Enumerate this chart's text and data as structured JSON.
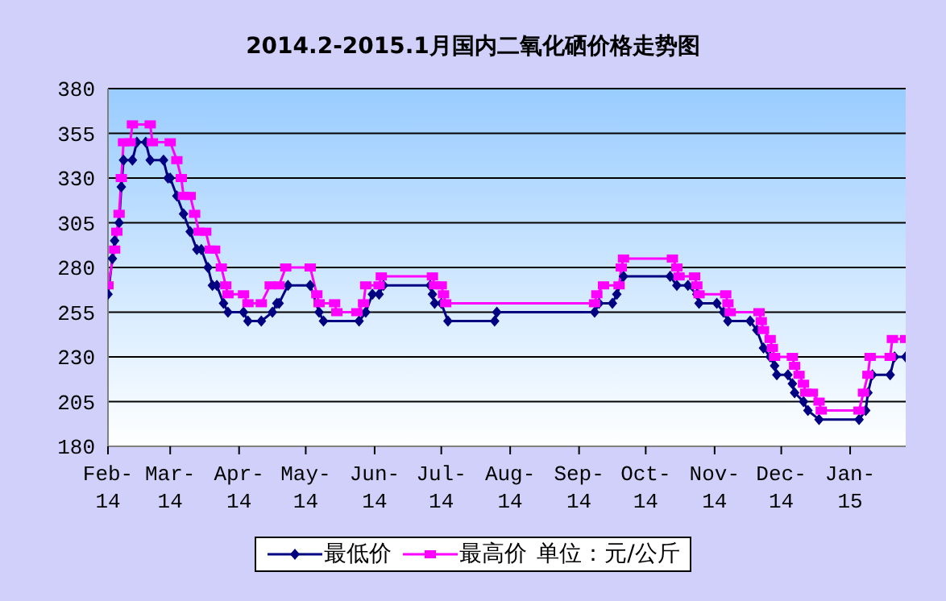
{
  "chart_data": {
    "type": "line",
    "title": "2014.2-2015.1月国内二氧化硒价格走势图",
    "ylim": [
      180,
      380
    ],
    "yticks": [
      180,
      205,
      230,
      255,
      280,
      305,
      330,
      355,
      380
    ],
    "xlim": [
      "2014-02-01",
      "2015-01-26"
    ],
    "xticks": [
      {
        "value": "2014-02-01",
        "label": "Feb-14"
      },
      {
        "value": "2014-03-01",
        "label": "Mar-14"
      },
      {
        "value": "2014-04-01",
        "label": "Apr-14"
      },
      {
        "value": "2014-05-01",
        "label": "May-14"
      },
      {
        "value": "2014-06-01",
        "label": "Jun-14"
      },
      {
        "value": "2014-07-01",
        "label": "Jul-14"
      },
      {
        "value": "2014-08-01",
        "label": "Aug-14"
      },
      {
        "value": "2014-09-01",
        "label": "Sep-14"
      },
      {
        "value": "2014-10-01",
        "label": "Oct-14"
      },
      {
        "value": "2014-11-01",
        "label": "Nov-14"
      },
      {
        "value": "2014-12-01",
        "label": "Dec-14"
      },
      {
        "value": "2015-01-01",
        "label": "Jan-15"
      }
    ],
    "grid": "y",
    "legend": "bottom",
    "annotations": [
      "单位：元/公斤"
    ],
    "series": [
      {
        "name": "最低价",
        "color": "#000080",
        "marker": "diamond",
        "x": [
          "2014-02-01",
          "2014-02-03",
          "2014-02-04",
          "2014-02-06",
          "2014-02-07",
          "2014-02-08",
          "2014-02-12",
          "2014-02-14",
          "2014-02-18",
          "2014-02-20",
          "2014-02-26",
          "2014-02-28",
          "2014-03-01",
          "2014-03-04",
          "2014-03-07",
          "2014-03-10",
          "2014-03-13",
          "2014-03-15",
          "2014-03-18",
          "2014-03-20",
          "2014-03-22",
          "2014-03-25",
          "2014-03-27",
          "2014-04-03",
          "2014-04-05",
          "2014-04-11",
          "2014-04-16",
          "2014-04-18",
          "2014-04-19",
          "2014-04-23",
          "2014-05-03",
          "2014-05-07",
          "2014-05-09",
          "2014-05-25",
          "2014-05-28",
          "2014-05-31",
          "2014-06-03",
          "2014-06-05",
          "2014-06-26",
          "2014-06-27",
          "2014-06-28",
          "2014-07-01",
          "2014-07-04",
          "2014-07-25",
          "2014-07-26",
          "2014-09-08",
          "2014-09-10",
          "2014-09-16",
          "2014-09-18",
          "2014-09-21",
          "2014-10-12",
          "2014-10-15",
          "2014-10-20",
          "2014-10-24",
          "2014-10-25",
          "2014-11-02",
          "2014-11-05",
          "2014-11-07",
          "2014-11-17",
          "2014-11-20",
          "2014-11-23",
          "2014-11-26",
          "2014-11-28",
          "2014-11-29",
          "2014-12-04",
          "2014-12-06",
          "2014-12-07",
          "2014-12-11",
          "2014-12-13",
          "2014-12-18",
          "2015-01-05",
          "2015-01-08",
          "2015-01-09",
          "2015-01-11",
          "2015-01-19",
          "2015-01-21",
          "2015-01-26"
        ],
        "values": [
          265,
          285,
          295,
          305,
          325,
          340,
          340,
          350,
          350,
          340,
          340,
          330,
          330,
          320,
          310,
          300,
          290,
          290,
          280,
          270,
          270,
          260,
          255,
          255,
          250,
          250,
          255,
          260,
          260,
          270,
          270,
          255,
          250,
          250,
          255,
          265,
          265,
          270,
          270,
          265,
          260,
          260,
          250,
          250,
          255,
          255,
          260,
          260,
          265,
          275,
          275,
          270,
          270,
          265,
          260,
          260,
          255,
          250,
          250,
          245,
          235,
          230,
          225,
          220,
          220,
          215,
          210,
          205,
          200,
          195,
          195,
          200,
          210,
          220,
          220,
          230,
          230
        ]
      },
      {
        "name": "最高价",
        "color": "#ff00ff",
        "marker": "square",
        "x": [
          "2014-02-01",
          "2014-02-04",
          "2014-02-05",
          "2014-02-06",
          "2014-02-07",
          "2014-02-08",
          "2014-02-11",
          "2014-02-12",
          "2014-02-20",
          "2014-02-21",
          "2014-03-01",
          "2014-03-04",
          "2014-03-06",
          "2014-03-07",
          "2014-03-10",
          "2014-03-12",
          "2014-03-14",
          "2014-03-17",
          "2014-03-19",
          "2014-03-21",
          "2014-03-24",
          "2014-03-26",
          "2014-03-27",
          "2014-04-03",
          "2014-04-05",
          "2014-04-11",
          "2014-04-15",
          "2014-04-19",
          "2014-04-22",
          "2014-05-03",
          "2014-05-06",
          "2014-05-07",
          "2014-05-14",
          "2014-05-15",
          "2014-05-24",
          "2014-05-27",
          "2014-05-28",
          "2014-06-03",
          "2014-06-04",
          "2014-06-27",
          "2014-06-28",
          "2014-07-01",
          "2014-07-02",
          "2014-07-03",
          "2014-09-08",
          "2014-09-09",
          "2014-09-12",
          "2014-09-19",
          "2014-09-20",
          "2014-09-21",
          "2014-10-13",
          "2014-10-15",
          "2014-10-16",
          "2014-10-23",
          "2014-10-24",
          "2014-10-25",
          "2014-11-06",
          "2014-11-07",
          "2014-11-08",
          "2014-11-21",
          "2014-11-22",
          "2014-11-23",
          "2014-11-26",
          "2014-11-27",
          "2014-11-28",
          "2014-12-06",
          "2014-12-07",
          "2014-12-09",
          "2014-12-11",
          "2014-12-12",
          "2014-12-15",
          "2014-12-18",
          "2014-12-19",
          "2015-01-05",
          "2015-01-07",
          "2015-01-09",
          "2015-01-10",
          "2015-01-19",
          "2015-01-20",
          "2015-01-26"
        ],
        "values": [
          270,
          290,
          300,
          310,
          330,
          350,
          350,
          360,
          360,
          350,
          350,
          340,
          330,
          320,
          320,
          310,
          300,
          300,
          290,
          290,
          280,
          270,
          265,
          265,
          260,
          260,
          270,
          270,
          280,
          280,
          265,
          260,
          260,
          255,
          255,
          260,
          270,
          270,
          275,
          275,
          270,
          270,
          265,
          260,
          260,
          265,
          270,
          270,
          280,
          285,
          285,
          280,
          275,
          275,
          270,
          265,
          265,
          260,
          255,
          255,
          250,
          245,
          240,
          235,
          230,
          230,
          225,
          220,
          215,
          210,
          210,
          205,
          200,
          200,
          210,
          220,
          230,
          230,
          240,
          240
        ]
      }
    ]
  }
}
